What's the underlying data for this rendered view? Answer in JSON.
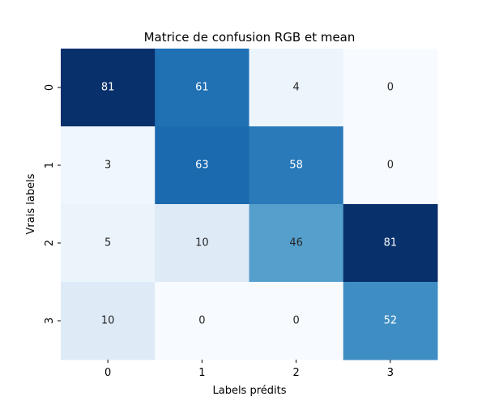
{
  "chart_data": {
    "type": "heatmap",
    "title": "Matrice de confusion RGB et mean",
    "xlabel": "Labels prédits",
    "ylabel": "Vrais labels",
    "x_categories": [
      "0",
      "1",
      "2",
      "3"
    ],
    "y_categories": [
      "0",
      "1",
      "2",
      "3"
    ],
    "values": [
      [
        81,
        61,
        4,
        0
      ],
      [
        3,
        63,
        58,
        0
      ],
      [
        5,
        10,
        46,
        81
      ],
      [
        10,
        0,
        0,
        52
      ]
    ],
    "colormap": "Blues",
    "value_range": [
      0,
      81
    ],
    "colorbar": false,
    "grid": false
  }
}
